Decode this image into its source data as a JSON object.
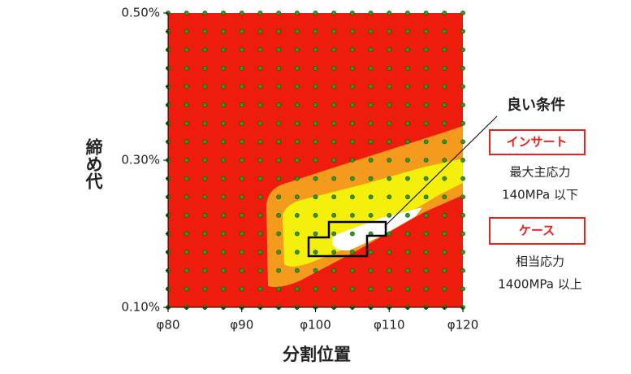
{
  "chart_data": {
    "type": "contour",
    "x_label": "分割位置",
    "y_label": "締め代",
    "xlim": [
      80,
      120
    ],
    "ylim": [
      0.1,
      0.5
    ],
    "xticks": [
      {
        "value": 80,
        "label": "φ80"
      },
      {
        "value": 90,
        "label": "φ90"
      },
      {
        "value": 100,
        "label": "φ100"
      },
      {
        "value": 110,
        "label": "φ110"
      },
      {
        "value": 120,
        "label": "φ120"
      }
    ],
    "yticks": [
      {
        "value": 0.1,
        "label": "0.10%"
      },
      {
        "value": 0.3,
        "label": "0.30%"
      },
      {
        "value": 0.5,
        "label": "0.50%"
      }
    ],
    "grid_points": {
      "color": "#2e9a1e",
      "x": [
        80,
        82.5,
        85,
        87.5,
        90,
        92.5,
        95,
        97.5,
        100,
        102.5,
        105,
        107.5,
        110,
        112.5,
        115,
        117.5,
        120
      ],
      "y": [
        0.1,
        0.125,
        0.15,
        0.175,
        0.2,
        0.225,
        0.25,
        0.275,
        0.3,
        0.325,
        0.35,
        0.375,
        0.4,
        0.425,
        0.45,
        0.475,
        0.5
      ]
    },
    "annotations": {
      "good": "良い条件",
      "insert": "インサート",
      "insert_cond_1": "最大主応力",
      "insert_cond_2": "140MPa 以下",
      "case": "ケース",
      "case_cond_1": "相当応力",
      "case_cond_2": "1400MPa 以上"
    }
  }
}
